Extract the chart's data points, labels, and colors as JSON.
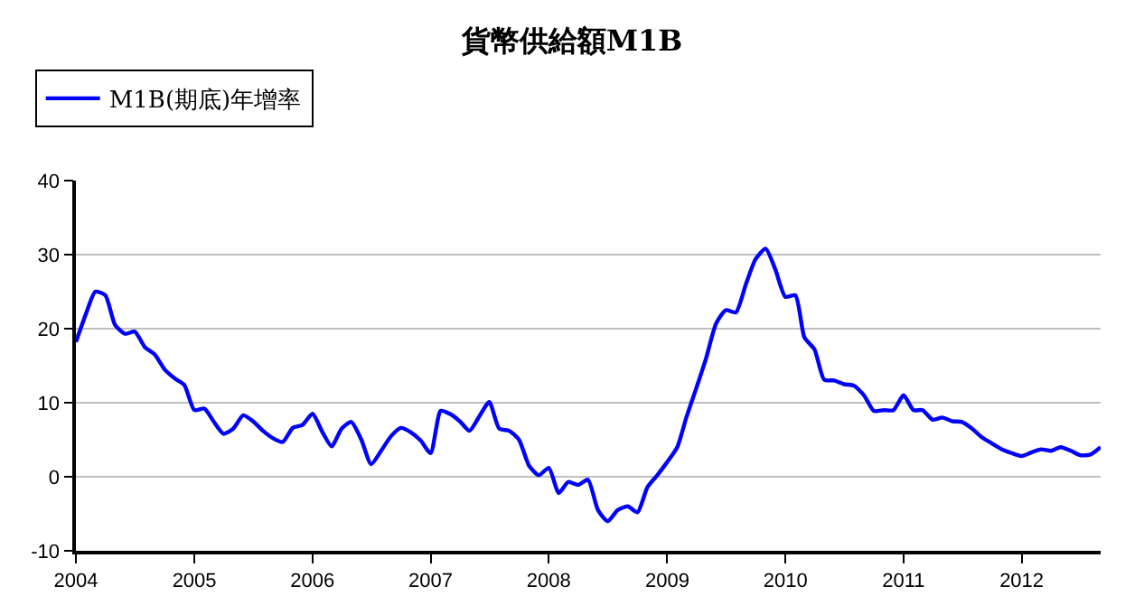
{
  "chart_data": {
    "type": "line",
    "title": "貨幣供給額M1B",
    "legend": "top left",
    "grid": "y",
    "line_style": "solid",
    "marker": "none",
    "xlim": [
      "2004-01",
      "2012-09"
    ],
    "xticks": [
      {
        "value": "2004",
        "label": "2004"
      },
      {
        "value": "2005",
        "label": "2005"
      },
      {
        "value": "2006",
        "label": "2006"
      },
      {
        "value": "2007",
        "label": "2007"
      },
      {
        "value": "2008",
        "label": "2008"
      },
      {
        "value": "2009",
        "label": "2009"
      },
      {
        "value": "2010",
        "label": "2010"
      },
      {
        "value": "2011",
        "label": "2011"
      },
      {
        "value": "2012",
        "label": "2012"
      }
    ],
    "ylim": [
      -10,
      40
    ],
    "yticks": [
      -10,
      0,
      10,
      20,
      30,
      40
    ],
    "x": [
      "2004-01",
      "2004-02",
      "2004-03",
      "2004-04",
      "2004-05",
      "2004-06",
      "2004-07",
      "2004-08",
      "2004-09",
      "2004-10",
      "2004-11",
      "2004-12",
      "2005-01",
      "2005-02",
      "2005-03",
      "2005-04",
      "2005-05",
      "2005-06",
      "2005-07",
      "2005-08",
      "2005-09",
      "2005-10",
      "2005-11",
      "2005-12",
      "2006-01",
      "2006-02",
      "2006-03",
      "2006-04",
      "2006-05",
      "2006-06",
      "2006-07",
      "2006-08",
      "2006-09",
      "2006-10",
      "2006-11",
      "2006-12",
      "2007-01",
      "2007-02",
      "2007-03",
      "2007-04",
      "2007-05",
      "2007-06",
      "2007-07",
      "2007-08",
      "2007-09",
      "2007-10",
      "2007-11",
      "2007-12",
      "2008-01",
      "2008-02",
      "2008-03",
      "2008-04",
      "2008-05",
      "2008-06",
      "2008-07",
      "2008-08",
      "2008-09",
      "2008-10",
      "2008-11",
      "2008-12",
      "2009-01",
      "2009-02",
      "2009-03",
      "2009-04",
      "2009-05",
      "2009-06",
      "2009-07",
      "2009-08",
      "2009-09",
      "2009-10",
      "2009-11",
      "2009-12",
      "2010-01",
      "2010-02",
      "2010-03",
      "2010-04",
      "2010-05",
      "2010-06",
      "2010-07",
      "2010-08",
      "2010-09",
      "2010-10",
      "2010-11",
      "2010-12",
      "2011-01",
      "2011-02",
      "2011-03",
      "2011-04",
      "2011-05",
      "2011-06",
      "2011-07",
      "2011-08",
      "2011-09",
      "2011-10",
      "2011-11",
      "2011-12",
      "2012-01",
      "2012-02",
      "2012-03",
      "2012-04",
      "2012-05",
      "2012-06",
      "2012-07",
      "2012-08",
      "2012-09"
    ],
    "series": [
      {
        "name": "M1B(期底)年增率",
        "color": "#0000ff",
        "values": [
          18.2,
          22,
          25,
          24.5,
          20.5,
          19.3,
          19.6,
          17.5,
          16.5,
          14.5,
          13.3,
          12.4,
          9,
          9.2,
          7.5,
          5.8,
          6.5,
          8.3,
          7.5,
          6.2,
          5.2,
          4.7,
          6.6,
          7,
          8.5,
          6,
          4.1,
          6.5,
          7.4,
          5,
          1.7,
          3.5,
          5.5,
          6.6,
          6,
          4.9,
          3.2,
          8.9,
          8.5,
          7.5,
          6.2,
          8.2,
          10.1,
          6.5,
          6.2,
          5,
          1.5,
          0.2,
          1.2,
          -2.2,
          -0.7,
          -1.1,
          -0.4,
          -4.5,
          -6,
          -4.5,
          -4,
          -4.8,
          -1.4,
          0.2,
          2,
          4,
          8,
          12,
          16,
          20.7,
          22.5,
          22.2,
          26,
          29.4,
          30.8,
          28,
          24.3,
          24.5,
          18.8,
          17.2,
          13.1,
          13,
          12.5,
          12.3,
          11,
          8.9,
          9,
          9,
          11,
          9,
          9,
          7.7,
          8,
          7.5,
          7.4,
          6.5,
          5.3,
          4.5,
          3.7,
          3.2,
          2.8,
          3.3,
          3.7,
          3.5,
          4,
          3.5,
          2.9,
          3,
          4
        ]
      }
    ]
  }
}
